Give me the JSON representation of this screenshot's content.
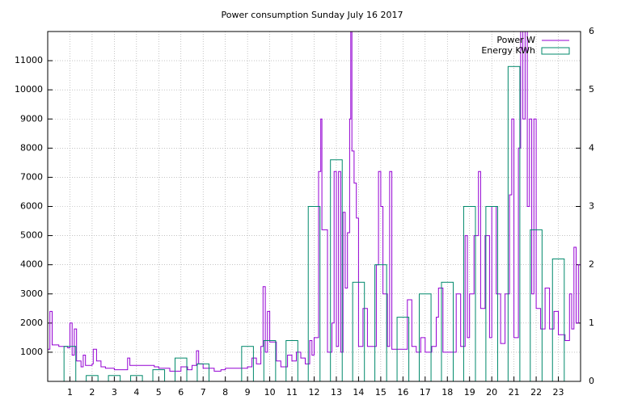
{
  "chart_data": {
    "type": "line",
    "title": "Power consumption Sunday July 16 2017",
    "xlim": [
      0,
      24
    ],
    "xticks": [
      1,
      2,
      3,
      4,
      5,
      6,
      7,
      8,
      9,
      10,
      11,
      12,
      13,
      14,
      15,
      16,
      17,
      18,
      19,
      20,
      21,
      22,
      23
    ],
    "ylim": [
      0,
      12000
    ],
    "yticks": [
      1000,
      2000,
      3000,
      4000,
      5000,
      6000,
      7000,
      8000,
      9000,
      10000,
      11000
    ],
    "y2lim": [
      0,
      6
    ],
    "y2ticks": [
      0,
      1,
      2,
      3,
      4,
      5,
      6
    ],
    "grid": true,
    "legend": "top-right",
    "series": [
      {
        "name": "Power W",
        "color": "#9400d3",
        "style": "steps",
        "x": [
          0,
          0.1,
          0.2,
          0.5,
          0.9,
          1.0,
          1.1,
          1.2,
          1.3,
          1.5,
          1.6,
          1.7,
          2.0,
          2.05,
          2.2,
          2.4,
          2.6,
          3.0,
          3.5,
          3.6,
          3.7,
          4.5,
          4.8,
          5.0,
          5.5,
          6.0,
          6.3,
          6.5,
          6.7,
          6.8,
          7.0,
          7.5,
          7.8,
          8.0,
          8.5,
          9.0,
          9.2,
          9.4,
          9.6,
          9.7,
          9.8,
          9.9,
          10.0,
          10.3,
          10.5,
          10.8,
          11.0,
          11.2,
          11.4,
          11.6,
          11.8,
          11.9,
          12.0,
          12.2,
          12.3,
          12.35,
          12.6,
          12.8,
          12.9,
          13.0,
          13.1,
          13.2,
          13.3,
          13.4,
          13.5,
          13.6,
          13.65,
          13.7,
          13.8,
          13.9,
          14.0,
          14.2,
          14.4,
          14.6,
          14.8,
          14.9,
          15.0,
          15.1,
          15.3,
          15.4,
          15.5,
          15.8,
          16.0,
          16.2,
          16.4,
          16.6,
          16.8,
          17.0,
          17.3,
          17.5,
          17.6,
          17.8,
          18.0,
          18.4,
          18.6,
          18.8,
          18.9,
          19.0,
          19.2,
          19.4,
          19.5,
          19.7,
          19.9,
          20.0,
          20.2,
          20.4,
          20.6,
          20.8,
          20.9,
          21.0,
          21.2,
          21.3,
          21.4,
          21.5,
          21.6,
          21.7,
          21.8,
          21.9,
          22.0,
          22.2,
          22.4,
          22.6,
          22.8,
          23.0,
          23.3,
          23.5,
          23.6,
          23.7,
          23.8,
          23.9,
          24.0
        ],
        "values": [
          1100,
          2400,
          1250,
          1200,
          1150,
          2000,
          900,
          1800,
          700,
          500,
          900,
          550,
          600,
          1100,
          700,
          500,
          450,
          400,
          400,
          800,
          550,
          550,
          500,
          450,
          350,
          500,
          400,
          550,
          1050,
          600,
          450,
          350,
          400,
          450,
          450,
          500,
          800,
          600,
          1200,
          3250,
          1000,
          2400,
          1350,
          700,
          500,
          900,
          700,
          1000,
          800,
          600,
          1400,
          900,
          1500,
          7200,
          9000,
          5200,
          1000,
          2000,
          7200,
          1200,
          7200,
          1000,
          5800,
          3200,
          5100,
          9000,
          12000,
          7900,
          6800,
          5600,
          1200,
          2500,
          1200,
          1200,
          4000,
          7200,
          6000,
          3000,
          1200,
          7200,
          1100,
          1100,
          1100,
          2800,
          1200,
          1000,
          1500,
          1000,
          1200,
          2200,
          3200,
          1000,
          1000,
          3000,
          1200,
          5000,
          1500,
          3000,
          5000,
          7200,
          2500,
          5000,
          1500,
          6000,
          3000,
          1300,
          3000,
          6400,
          9000,
          1500,
          8000,
          12000,
          9000,
          12000,
          6000,
          9000,
          3000,
          9000,
          2500,
          1800,
          3200,
          1800,
          2400,
          1600,
          1400,
          3000,
          1800,
          4600,
          2000,
          4000,
          3700
        ]
      },
      {
        "name": "Energy KWh",
        "color": "#00896b",
        "style": "boxes",
        "axis": "y2",
        "x": [
          1,
          2,
          3,
          4,
          5,
          6,
          7,
          8,
          9,
          10,
          11,
          12,
          13,
          14,
          15,
          16,
          17,
          18,
          19,
          20,
          21,
          22,
          23
        ],
        "values": [
          0.6,
          0.1,
          0.1,
          0.1,
          0.2,
          0.4,
          0.3,
          0,
          0.6,
          0.7,
          0.7,
          3.0,
          3.8,
          1.7,
          2.0,
          1.1,
          1.5,
          1.7,
          3.0,
          3.0,
          5.4,
          2.6,
          2.1
        ]
      }
    ]
  }
}
